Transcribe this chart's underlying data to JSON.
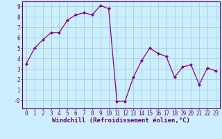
{
  "x": [
    0,
    1,
    2,
    3,
    4,
    5,
    6,
    7,
    8,
    9,
    10,
    11,
    12,
    13,
    14,
    15,
    16,
    17,
    18,
    19,
    20,
    21,
    22,
    23
  ],
  "y": [
    3.5,
    5.0,
    5.8,
    6.5,
    6.5,
    7.7,
    8.2,
    8.4,
    8.2,
    9.1,
    8.8,
    -0.1,
    -0.1,
    2.2,
    3.8,
    5.0,
    4.5,
    4.2,
    2.2,
    3.2,
    3.4,
    1.5,
    3.1,
    2.8
  ],
  "line_color": "#880088",
  "marker": "D",
  "markersize": 2.0,
  "linewidth": 0.9,
  "background_color": "#cceeff",
  "grid_color": "#99cccc",
  "xlabel": "Windchill (Refroidissement éolien,°C)",
  "xlabel_fontsize": 6.5,
  "ylim": [
    -0.8,
    9.5
  ],
  "xlim": [
    -0.5,
    23.5
  ],
  "yticks": [
    0,
    1,
    2,
    3,
    4,
    5,
    6,
    7,
    8,
    9
  ],
  "ytick_labels": [
    "-0",
    "1",
    "2",
    "3",
    "4",
    "5",
    "6",
    "7",
    "8",
    "9"
  ],
  "xticks": [
    0,
    1,
    2,
    3,
    4,
    5,
    6,
    7,
    8,
    9,
    10,
    11,
    12,
    13,
    14,
    15,
    16,
    17,
    18,
    19,
    20,
    21,
    22,
    23
  ],
  "tick_fontsize": 5.5,
  "spine_color": "#660066",
  "title_color": "#660066"
}
